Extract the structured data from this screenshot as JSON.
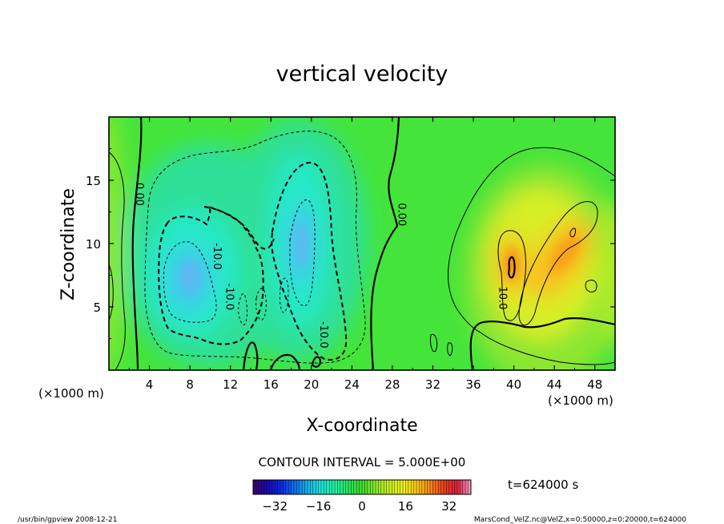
{
  "chart_data": {
    "type": "heatmap",
    "title": "vertical velocity",
    "xlabel": "X-coordinate",
    "ylabel": "Z-coordinate",
    "x_unit_label": "(×1000 m)",
    "y_unit_label": "(×1000 m)",
    "xlim": [
      0,
      50
    ],
    "ylim": [
      0,
      20
    ],
    "x_ticks": [
      4,
      8,
      12,
      16,
      20,
      24,
      28,
      32,
      36,
      40,
      44,
      48
    ],
    "y_ticks": [
      5,
      10,
      15
    ],
    "contour_interval_text": "CONTOUR INTERVAL = 5.000E+00",
    "time_text": "t=624000 s",
    "contour_labels": [
      {
        "text": "0.00",
        "x": 3.0,
        "z": 13.9,
        "rot": 90
      },
      {
        "text": "-10.0",
        "x": 10.7,
        "z": 9.0,
        "rot": 90
      },
      {
        "text": "-10.0",
        "x": 11.9,
        "z": 5.8,
        "rot": 90
      },
      {
        "text": "-10.0",
        "x": 21.2,
        "z": 2.8,
        "rot": 90
      },
      {
        "text": "0.00",
        "x": 28.9,
        "z": 12.3,
        "rot": 90
      },
      {
        "text": "10.0",
        "x": 38.9,
        "z": 5.7,
        "rot": 90
      }
    ],
    "colorbar": {
      "range": [
        -40,
        40
      ],
      "tick_labels": [
        -32,
        -16,
        0,
        16,
        32
      ],
      "tick_text": [
        "−32",
        "−16",
        "0",
        "16",
        "32"
      ],
      "colors": [
        "#3c0066",
        "#1a0aa8",
        "#0a28e0",
        "#0a6cf0",
        "#14b4f0",
        "#1ce6d8",
        "#22f0a0",
        "#2ee060",
        "#3cdc2c",
        "#88e828",
        "#c8f020",
        "#f0f020",
        "#f8c818",
        "#f88818",
        "#f04018",
        "#e01a3c",
        "#f0a0c8"
      ]
    },
    "footer_left": "/usr/bin/gpview   2008-12-21",
    "footer_right": "MarsCond_VelZ.nc@VelZ,x=0:50000,z=0:20000,t=624000",
    "field_features": [
      {
        "x": 7.5,
        "z": 8,
        "value": -30
      },
      {
        "x": 19,
        "z": 10,
        "value": -32
      },
      {
        "x": 14,
        "z": 3.5,
        "value": -14
      },
      {
        "x": 39.7,
        "z": 8,
        "value": 22
      },
      {
        "x": 45,
        "z": 10,
        "value": 20
      },
      {
        "x": 49.8,
        "z": 8,
        "value": 4
      },
      {
        "x": 0.2,
        "z": 7,
        "value": 4
      },
      {
        "x": 33,
        "z": 1.5,
        "value": -2
      }
    ]
  }
}
